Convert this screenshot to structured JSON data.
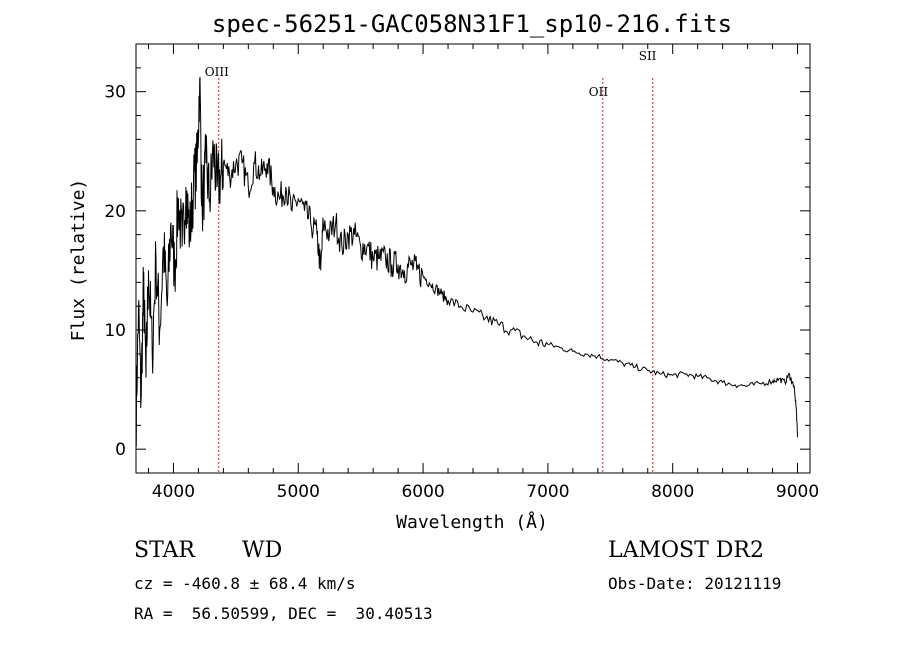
{
  "chart_data": {
    "type": "line",
    "title": "spec-56251-GAC058N31F1_sp10-216.fits",
    "xlabel": "Wavelength (Å)",
    "ylabel": "Flux (relative)",
    "xlim": [
      3700,
      9100
    ],
    "ylim": [
      -2,
      34
    ],
    "xticks": [
      4000,
      5000,
      6000,
      7000,
      8000,
      9000
    ],
    "yticks": [
      0,
      10,
      20,
      30
    ],
    "grid": false,
    "series": [
      {
        "name": "flux",
        "x": [
          3700,
          3720,
          3740,
          3760,
          3780,
          3800,
          3830,
          3860,
          3890,
          3920,
          3950,
          3980,
          4010,
          4040,
          4070,
          4100,
          4130,
          4160,
          4190,
          4210,
          4230,
          4260,
          4290,
          4320,
          4350,
          4380,
          4400,
          4450,
          4500,
          4550,
          4600,
          4650,
          4700,
          4750,
          4800,
          4850,
          4900,
          4950,
          5000,
          5050,
          5100,
          5150,
          5180,
          5200,
          5250,
          5300,
          5350,
          5400,
          5450,
          5500,
          5550,
          5600,
          5650,
          5700,
          5750,
          5800,
          5850,
          5900,
          5950,
          6000,
          6050,
          6100,
          6150,
          6200,
          6300,
          6400,
          6500,
          6600,
          6700,
          6800,
          6900,
          7000,
          7100,
          7200,
          7300,
          7400,
          7500,
          7600,
          7700,
          7800,
          7900,
          8000,
          8100,
          8200,
          8300,
          8400,
          8500,
          8600,
          8700,
          8800,
          8850,
          8900,
          8930,
          8950,
          8970,
          8990,
          9000
        ],
        "values": [
          2,
          12,
          4,
          14,
          6,
          15,
          8,
          16,
          10,
          17,
          12,
          19,
          15,
          21,
          17,
          22,
          18,
          22,
          24,
          31,
          20,
          24,
          21,
          25,
          22,
          23,
          24,
          23,
          24,
          24,
          22,
          24,
          23,
          24,
          22,
          21,
          22,
          20,
          21,
          20,
          19,
          18,
          15,
          19,
          18,
          19,
          17,
          18,
          18,
          17,
          17,
          16,
          16,
          16,
          15.5,
          15.5,
          15,
          15.5,
          15,
          14.5,
          14,
          13.5,
          13,
          12.5,
          12,
          11.5,
          11,
          10.5,
          10,
          9.5,
          9,
          8.8,
          8.5,
          8.2,
          8,
          7.8,
          7.5,
          7.2,
          6.9,
          6.6,
          6.3,
          6.2,
          6.3,
          6.1,
          5.9,
          5.6,
          5.4,
          5.3,
          5.5,
          5.7,
          5.9,
          5.6,
          6.3,
          5.8,
          5.3,
          3.5,
          1
        ]
      }
    ],
    "line_markers": [
      {
        "label": "OIII",
        "x": 4363
      },
      {
        "label": "OII",
        "x": 7440
      },
      {
        "label": "SII",
        "x": 7840
      }
    ]
  },
  "footer": {
    "class_label": "STAR",
    "subclass_label": "WD",
    "survey_label": "LAMOST DR2",
    "cz_text": "cz = -460.8 ± 68.4 km/s",
    "obs_date_text": "Obs-Date: 20121119",
    "coords_text": "RA =  56.50599, DEC =  30.40513"
  },
  "colors": {
    "line_marker": "#b03030",
    "spectrum": "#000000"
  }
}
